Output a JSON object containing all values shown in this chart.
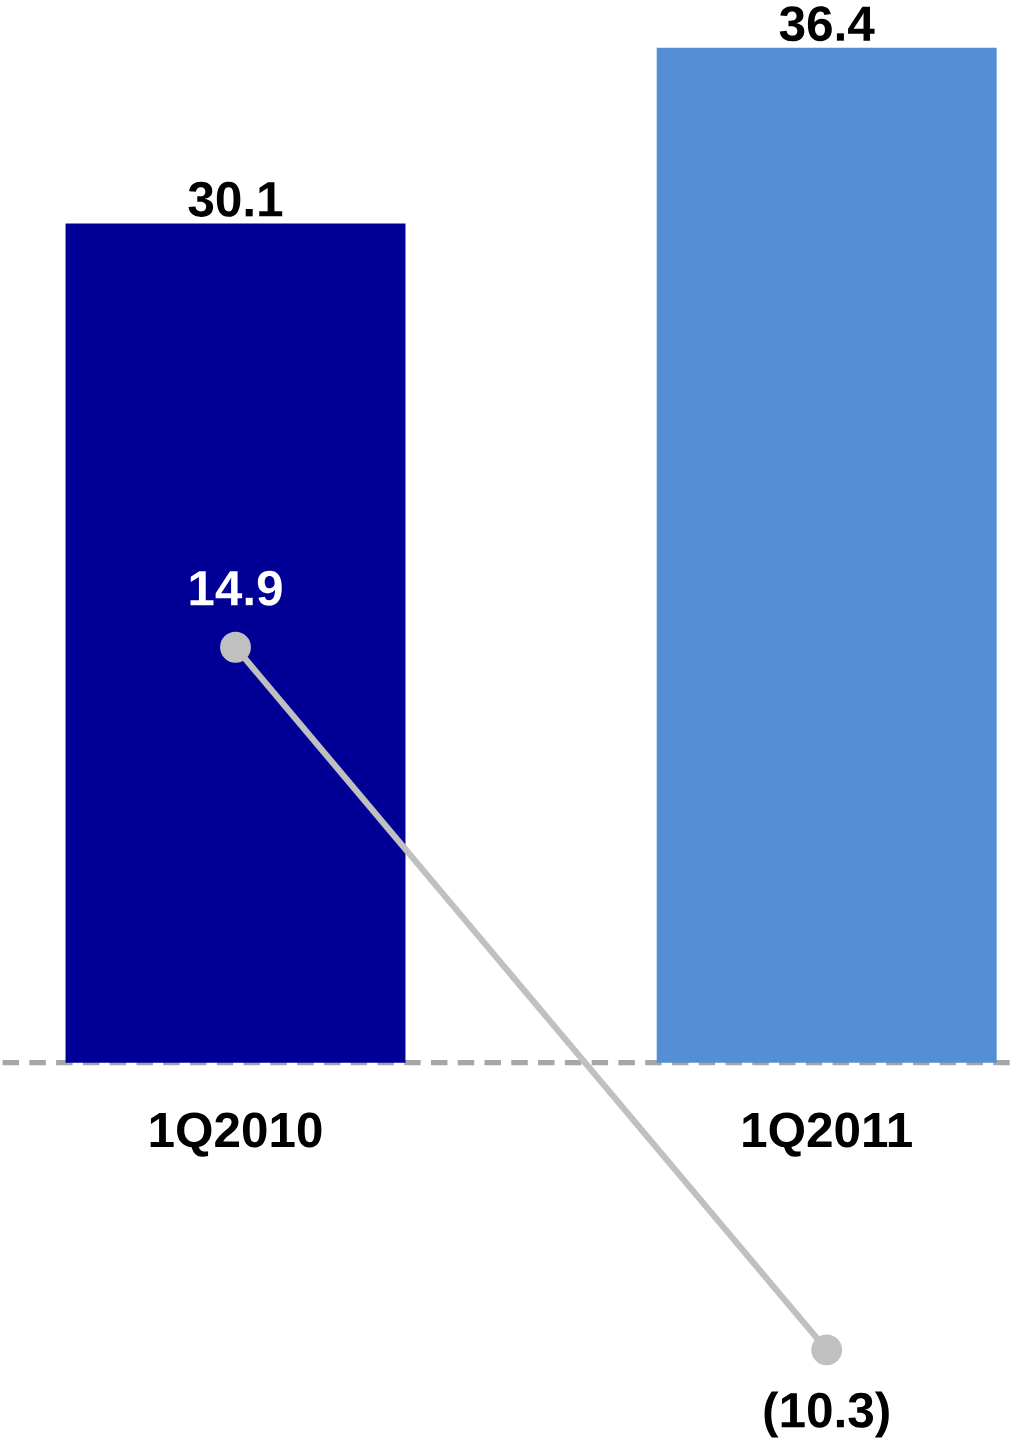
{
  "chart_data": {
    "type": "bar",
    "categories": [
      "1Q2010",
      "1Q2011"
    ],
    "data_labels": true,
    "series": [
      {
        "colors": [
          "#000096",
          "#558ed5"
        ],
        "values": [
          30.1,
          36.4
        ]
      },
      {
        "type": "line",
        "color": "#c0c0c0",
        "marker": "circle",
        "values": [
          14.9,
          -10.3
        ],
        "value_labels": [
          "14.9",
          "(10.3)"
        ]
      }
    ],
    "ref_lines": [
      {
        "axis": "y",
        "value": 0,
        "color": "#a6a6a6",
        "line_style": "dashed"
      }
    ]
  }
}
